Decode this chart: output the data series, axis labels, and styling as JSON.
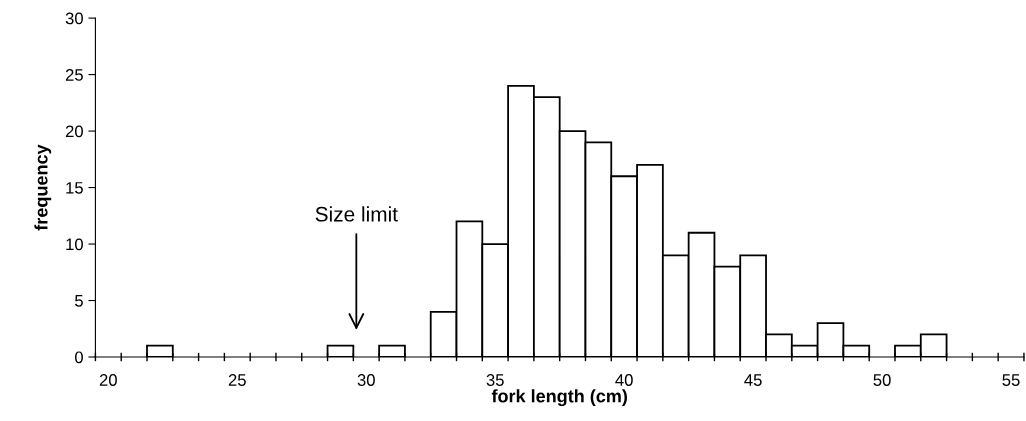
{
  "chart_data": {
    "type": "bar",
    "xlabel": "fork length (cm)",
    "ylabel": "frequency",
    "categories": [
      "20",
      null,
      null,
      null,
      null,
      "25",
      null,
      null,
      null,
      null,
      "30",
      null,
      null,
      null,
      null,
      "35",
      null,
      null,
      null,
      null,
      "40",
      null,
      null,
      null,
      null,
      "45",
      null,
      null,
      null,
      null,
      "50",
      null,
      null,
      null,
      null,
      "55"
    ],
    "values": [
      0,
      0,
      1,
      0,
      0,
      0,
      0,
      0,
      0,
      1,
      0,
      1,
      0,
      4,
      12,
      10,
      24,
      23,
      20,
      19,
      16,
      17,
      9,
      11,
      8,
      9,
      2,
      1,
      3,
      1,
      0,
      1,
      2,
      0,
      0,
      0
    ],
    "color": "#ffffff",
    "ylim": [
      0,
      30
    ],
    "yticks": [
      0,
      5,
      10,
      15,
      20,
      25,
      30
    ],
    "annotations": [
      "Size limit"
    ]
  }
}
